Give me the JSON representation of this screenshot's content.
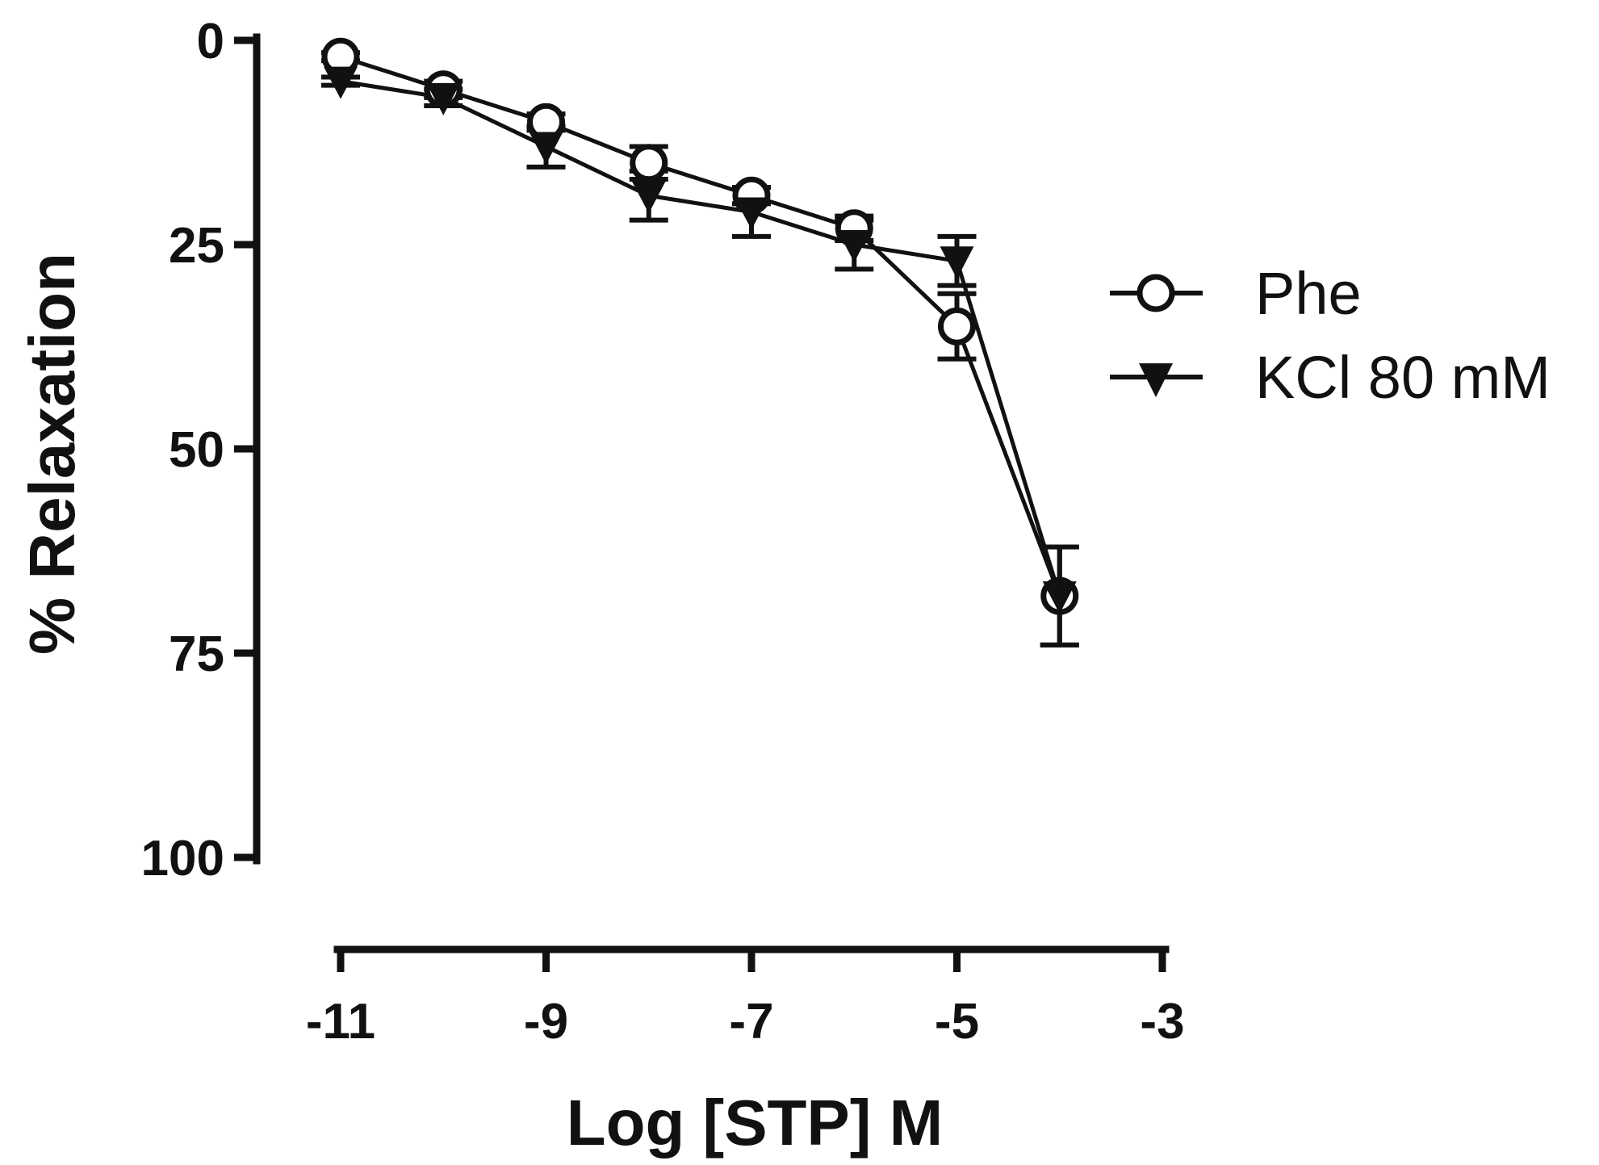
{
  "chart_data": {
    "type": "line",
    "title": "",
    "xlabel": "Log [STP] M",
    "ylabel": "% Relaxation",
    "xlim": [
      -11,
      -3
    ],
    "ylim": [
      0,
      100
    ],
    "y_inverted": true,
    "xticks": [
      -11,
      -9,
      -7,
      -5,
      -3
    ],
    "xtick_labels": [
      "-11",
      "-9",
      "-7",
      "-5",
      "-3"
    ],
    "yticks": [
      0,
      25,
      50,
      75,
      100
    ],
    "ytick_labels": [
      "0",
      "25",
      "50",
      "75",
      "100"
    ],
    "legend_position": "right",
    "series": [
      {
        "name": "Phe",
        "marker": "open-circle",
        "color": "#111111",
        "x": [
          -11,
          -10,
          -9,
          -8,
          -7,
          -6,
          -5,
          -4
        ],
        "y": [
          2,
          6,
          10,
          15,
          19,
          23,
          35,
          68
        ],
        "err": [
          0.5,
          1,
          1,
          2,
          1,
          1.5,
          4,
          6
        ]
      },
      {
        "name": "KCl 80 mM",
        "marker": "filled-triangle-down",
        "color": "#111111",
        "x": [
          -11,
          -10,
          -9,
          -8,
          -7,
          -6,
          -5,
          -4
        ],
        "y": [
          5,
          7,
          13,
          19,
          21,
          25,
          27,
          68
        ],
        "err": [
          0.5,
          1,
          2.5,
          3,
          3,
          3,
          3,
          6
        ]
      }
    ]
  }
}
